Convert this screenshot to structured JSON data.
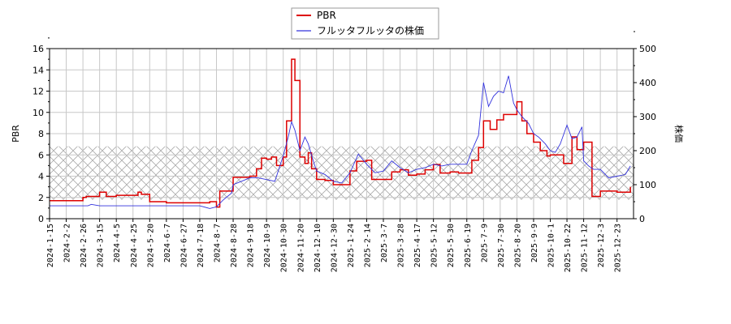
{
  "chart_data": {
    "type": "line",
    "title": "",
    "legend": {
      "position": "top-center",
      "entries": [
        {
          "label": "PBR",
          "color": "#dd0000"
        },
        {
          "label": "フルッタフルッタの株価",
          "color": "#3333dd"
        }
      ]
    },
    "xlabel": "",
    "ylabel_left": "PBR",
    "ylabel_right": "株価",
    "ylim_left": [
      0,
      16
    ],
    "ylim_right": [
      0,
      500
    ],
    "yticks_left": [
      0,
      2,
      4,
      6,
      8,
      10,
      12,
      14,
      16
    ],
    "yticks_right": [
      0,
      100,
      200,
      300,
      400,
      500
    ],
    "grid": true,
    "shaded_band_pbr": [
      1.8,
      6.8
    ],
    "x_tick_labels": [
      "2024-1-15",
      "2024-2-2",
      "2024-2-26",
      "2024-3-15",
      "2024-4-5",
      "2024-4-25",
      "2024-5-20",
      "2024-6-7",
      "2024-6-27",
      "2024-7-18",
      "2024-8-7",
      "2024-8-28",
      "2024-9-18",
      "2024-10-9",
      "2024-10-30",
      "2024-11-20",
      "2024-12-10",
      "2024-12-30",
      "2025-1-24",
      "2025-2-14",
      "2025-3-7",
      "2025-3-28",
      "2025-4-17",
      "2025-5-12",
      "2025-5-30",
      "2025-6-19",
      "2025-7-9",
      "2025-7-30",
      "2025-8-20",
      "2025-9-9",
      "2025-10-1",
      "2025-10-22",
      "2025-11-12",
      "2025-12-3",
      "2025-12-23"
    ],
    "series": [
      {
        "name": "PBR",
        "axis": "left",
        "color": "#dd0000",
        "x_index": [
          0,
          1,
          2,
          2.2,
          3,
          3.4,
          3.5,
          4,
          5,
          5.3,
          5.5,
          6,
          7,
          8,
          9,
          9.6,
          10,
          10.2,
          10.9,
          11,
          11.7,
          12,
          12.4,
          12.7,
          13,
          13.3,
          13.6,
          14,
          14.2,
          14.5,
          14.6,
          14.7,
          15,
          15.3,
          15.5,
          15.7,
          16,
          16.5,
          17,
          17.4,
          18,
          18.4,
          19,
          19.3,
          20,
          20.5,
          21,
          21.5,
          22,
          22.5,
          23,
          23.4,
          24,
          24.5,
          25,
          25.3,
          25.7,
          26,
          26.4,
          26.8,
          27.2,
          28,
          28.3,
          28.6,
          29,
          29.4,
          29.8,
          30,
          30.3,
          30.8,
          31,
          31.3,
          31.6,
          32,
          32.2,
          32.5,
          33,
          34,
          34.8
        ],
        "values": [
          1.7,
          1.7,
          2.0,
          2.1,
          2.5,
          2.1,
          2.1,
          2.2,
          2.2,
          2.5,
          2.3,
          1.6,
          1.5,
          1.5,
          1.5,
          1.6,
          1.1,
          2.6,
          2.6,
          3.9,
          3.9,
          4.0,
          4.7,
          5.7,
          5.6,
          5.8,
          5.0,
          5.8,
          9.2,
          15.0,
          15.0,
          13.0,
          5.8,
          5.2,
          6.2,
          4.7,
          3.7,
          3.6,
          3.2,
          3.2,
          4.5,
          5.4,
          5.5,
          3.7,
          3.7,
          4.4,
          4.6,
          4.1,
          4.2,
          4.6,
          5.1,
          4.3,
          4.4,
          4.3,
          4.3,
          5.5,
          6.7,
          9.2,
          8.4,
          9.3,
          9.8,
          11.0,
          9.2,
          8.0,
          7.2,
          6.4,
          5.9,
          6.0,
          6.0,
          5.2,
          5.2,
          7.7,
          6.5,
          7.2,
          7.2,
          2.1,
          2.6,
          2.5,
          3.0
        ]
      },
      {
        "name": "フルッタフルッタの株価",
        "axis": "right",
        "color": "#3333dd",
        "x_index": [
          0,
          1,
          2,
          2.3,
          2.5,
          3,
          4,
          5,
          6,
          7,
          8,
          9,
          9.6,
          10,
          10.4,
          10.9,
          11,
          11.5,
          12,
          12.5,
          13,
          13.5,
          14,
          14.3,
          14.5,
          14.7,
          15,
          15.3,
          15.5,
          15.8,
          16,
          16.5,
          17,
          17.5,
          18,
          18.5,
          19,
          19.5,
          20,
          20.5,
          21,
          21.5,
          22,
          22.5,
          23,
          23.5,
          24,
          24.5,
          25,
          25.3,
          25.7,
          26,
          26.3,
          26.6,
          26.9,
          27.2,
          27.5,
          27.8,
          28,
          28.3,
          28.7,
          29,
          29.3,
          29.7,
          30,
          30.3,
          30.6,
          31,
          31.3,
          31.6,
          31.9,
          32,
          32.3,
          32.6,
          33,
          33.5,
          34,
          34.5,
          34.8
        ],
        "values": [
          38,
          38,
          38,
          38,
          42,
          38,
          38,
          38,
          38,
          38,
          38,
          38,
          30,
          35,
          55,
          75,
          100,
          110,
          120,
          120,
          115,
          110,
          185,
          240,
          285,
          260,
          200,
          240,
          220,
          170,
          140,
          130,
          110,
          105,
          135,
          190,
          160,
          135,
          140,
          170,
          150,
          135,
          145,
          150,
          160,
          155,
          160,
          160,
          160,
          200,
          245,
          400,
          330,
          360,
          375,
          370,
          420,
          340,
          320,
          300,
          280,
          250,
          240,
          220,
          200,
          195,
          220,
          275,
          235,
          240,
          270,
          170,
          155,
          145,
          145,
          120,
          125,
          130,
          155
        ]
      }
    ]
  }
}
